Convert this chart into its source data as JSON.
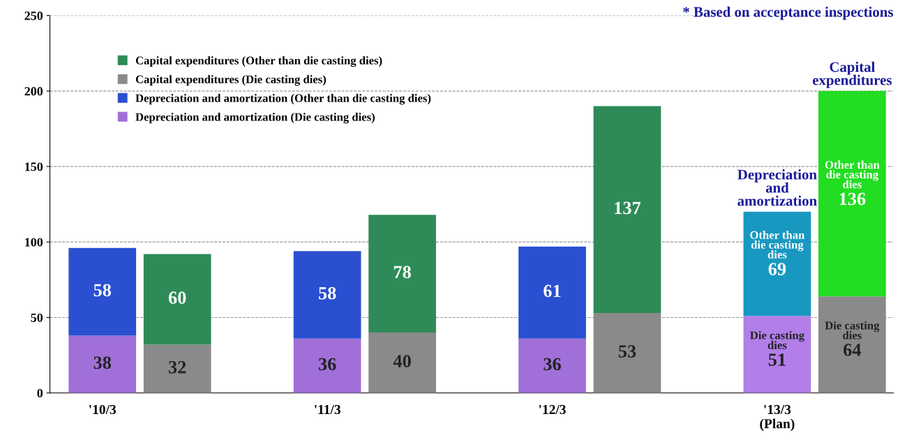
{
  "chart_data": {
    "type": "bar",
    "stacked": true,
    "categories": [
      "'10/3",
      null,
      "'11/3",
      null,
      "'12/3",
      null,
      "'13/3\n(Plan)",
      null
    ],
    "series": [
      {
        "name": "Depreciation and amortization (Die casting dies)",
        "color": "#a070d8",
        "colors": [
          "#a070d8",
          null,
          "#a070d8",
          null,
          "#a070d8",
          null,
          "#b27ee8",
          null
        ],
        "values": [
          38,
          null,
          36,
          null,
          36,
          null,
          51,
          null
        ],
        "value_labels": [
          "38",
          null,
          "36",
          null,
          "36",
          null,
          "Die casting\ndies\n51",
          null
        ]
      },
      {
        "name": "Depreciation and amortization (Other than die casting dies)",
        "color": "#2a4fd0",
        "colors": [
          "#2a4fd0",
          null,
          "#2a4fd0",
          null,
          "#2a4fd0",
          null,
          "#1898c0",
          null
        ],
        "values": [
          58,
          null,
          58,
          null,
          61,
          null,
          69,
          null
        ],
        "value_labels": [
          "58",
          null,
          "58",
          null,
          "61",
          null,
          "Other than\ndie casting\ndies\n69",
          null
        ]
      },
      {
        "name": "Capital expenditures (Die casting dies)",
        "color": "#8a8a8a",
        "colors": [
          null,
          "#8a8a8a",
          null,
          "#8a8a8a",
          null,
          "#8a8a8a",
          null,
          "#8a8a8a"
        ],
        "values": [
          null,
          32,
          null,
          40,
          null,
          53,
          null,
          64
        ],
        "value_labels": [
          null,
          "32",
          null,
          "40",
          null,
          "53",
          null,
          "Die casting\ndies\n64"
        ]
      },
      {
        "name": "Capital expenditures (Other than die casting dies)",
        "color": "#2e8b57",
        "colors": [
          null,
          "#2e8b57",
          null,
          "#2e8b57",
          null,
          "#2e8b57",
          null,
          "#22dd22"
        ],
        "values": [
          null,
          60,
          null,
          78,
          null,
          137,
          null,
          136
        ],
        "value_labels": [
          null,
          "60",
          null,
          "78",
          null,
          "137",
          null,
          "Other than\ndie casting\ndies\n136"
        ]
      }
    ],
    "ylim": [
      0,
      250
    ],
    "yticks": [
      0,
      50,
      100,
      150,
      200,
      250
    ],
    "grid": "y",
    "legend": "top left",
    "marker": "square",
    "annotations": [
      "* Based on acceptance inspections",
      "Depreciation\nand\namortization",
      "Capital\nexpenditures"
    ]
  }
}
